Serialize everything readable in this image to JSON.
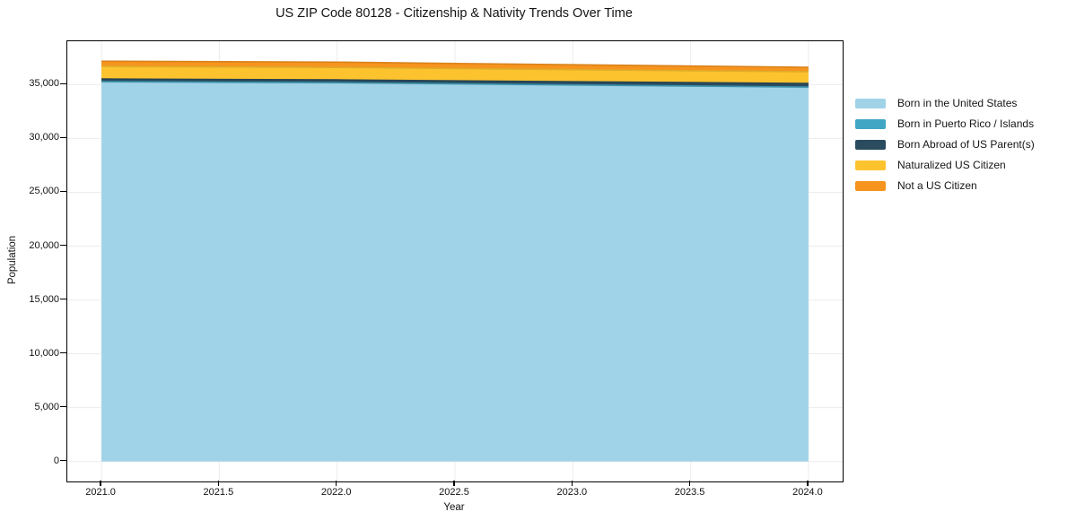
{
  "chart_data": {
    "type": "area",
    "stacked": true,
    "title": "US ZIP Code 80128 - Citizenship & Nativity Trends Over Time",
    "xlabel": "Year",
    "ylabel": "Population",
    "x": [
      2021,
      2022,
      2023,
      2024
    ],
    "series": [
      {
        "name": "Born in the United States",
        "color": "#A1D3E8",
        "values": [
          35250,
          35150,
          34950,
          34750
        ]
      },
      {
        "name": "Born in Puerto Rico / Islands",
        "color": "#41A6C4",
        "values": [
          30,
          30,
          25,
          25
        ]
      },
      {
        "name": "Born Abroad of US Parent(s)",
        "color": "#2B4C5E",
        "values": [
          240,
          260,
          290,
          330
        ]
      },
      {
        "name": "Naturalized US Citizen",
        "color": "#FDC32E",
        "values": [
          1180,
          1160,
          1120,
          1090
        ]
      },
      {
        "name": "Not a US Citizen",
        "color": "#F6941E",
        "values": [
          470,
          490,
          460,
          420
        ]
      }
    ],
    "x_ticks": [
      2021.0,
      2021.5,
      2022.0,
      2022.5,
      2023.0,
      2023.5,
      2024.0
    ],
    "x_tick_labels": [
      "2021.0",
      "2021.5",
      "2022.0",
      "2022.5",
      "2023.0",
      "2023.5",
      "2024.0"
    ],
    "y_ticks": [
      0,
      5000,
      10000,
      15000,
      20000,
      25000,
      30000,
      35000
    ],
    "y_tick_labels": [
      "0",
      "5,000",
      "10,000",
      "15,000",
      "20,000",
      "25,000",
      "30,000",
      "35,000"
    ],
    "xlim": [
      2020.855,
      2024.145
    ],
    "ylim": [
      -1858,
      39028
    ],
    "grid": true,
    "grid_color": "#ececec",
    "axis_color": "#000000",
    "background_color": "#ffffff",
    "legend_position": "right-outside"
  }
}
